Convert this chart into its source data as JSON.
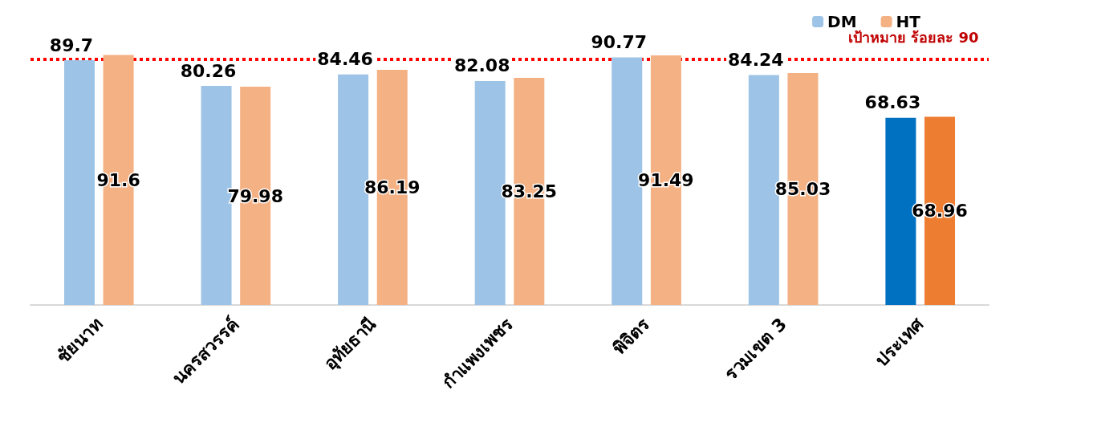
{
  "chart_data": {
    "type": "bar",
    "categories": [
      "ชัยนาท",
      "นครสวรรค์",
      "อุทัยธานี",
      "กำแพงเพชร",
      "พิจิตร",
      "รวมเขต 3",
      "ประเทศ"
    ],
    "series": [
      {
        "name": "DM",
        "color": "#9dc3e6",
        "colors": [
          "#9dc3e6",
          "#9dc3e6",
          "#9dc3e6",
          "#9dc3e6",
          "#9dc3e6",
          "#9dc3e6",
          "#0070c0"
        ],
        "values": [
          89.7,
          80.26,
          84.46,
          82.08,
          90.77,
          84.24,
          68.63
        ]
      },
      {
        "name": "HT",
        "color": "#f4b183",
        "colors": [
          "#f4b183",
          "#f4b183",
          "#f4b183",
          "#f4b183",
          "#f4b183",
          "#f4b183",
          "#ed7d31"
        ],
        "values": [
          91.6,
          79.98,
          86.19,
          83.25,
          91.49,
          85.03,
          68.96
        ]
      }
    ],
    "ref_lines": [
      {
        "axis": "y",
        "value": 90,
        "label": "เป้าหมาย ร้อยละ 90",
        "color": "#ff0000",
        "line_style": "dotted"
      }
    ],
    "data_labels": true,
    "grid": false,
    "legend": "top right"
  }
}
